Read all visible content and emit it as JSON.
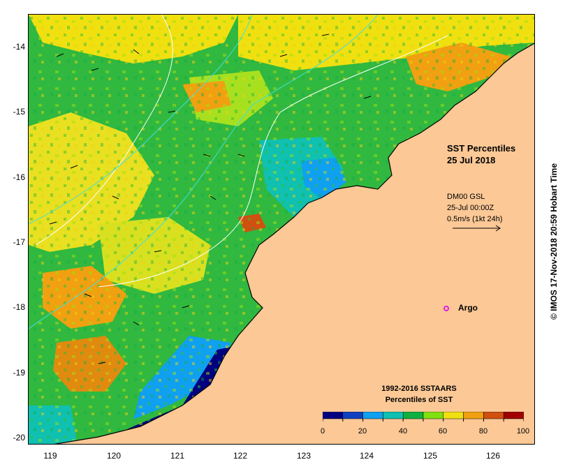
{
  "map": {
    "title_line1": "SST Percentiles",
    "title_line2": "25 Jul 2018",
    "info_line1": "DM00 GSL",
    "info_line2": "25-Jul 00:00Z",
    "info_line3": "0.5m/s (1kt 24h)",
    "argo_label": "Argo",
    "copyright": "© IMOS 17-Nov-2018 20:59 Hobart Time",
    "land_color": "#fbc896",
    "x_ticks": [
      "119",
      "120",
      "121",
      "122",
      "123",
      "124",
      "125",
      "126"
    ],
    "y_ticks": [
      "-14",
      "-15",
      "-16",
      "-17",
      "-18",
      "-19",
      "-20"
    ],
    "lon_range": [
      118.6,
      126.7
    ],
    "lat_range": [
      -20.1,
      -13.5
    ]
  },
  "legend": {
    "title_line1": "1992-2016 SSTAARS",
    "title_line2": "Percentiles of SST",
    "colors": [
      "#000080",
      "#1040c0",
      "#10a0f0",
      "#10c0b0",
      "#10b040",
      "#80e010",
      "#f0e010",
      "#f0a010",
      "#d05010",
      "#a00000"
    ],
    "tick_labels": [
      "0",
      "20",
      "40",
      "60",
      "80",
      "100"
    ]
  }
}
